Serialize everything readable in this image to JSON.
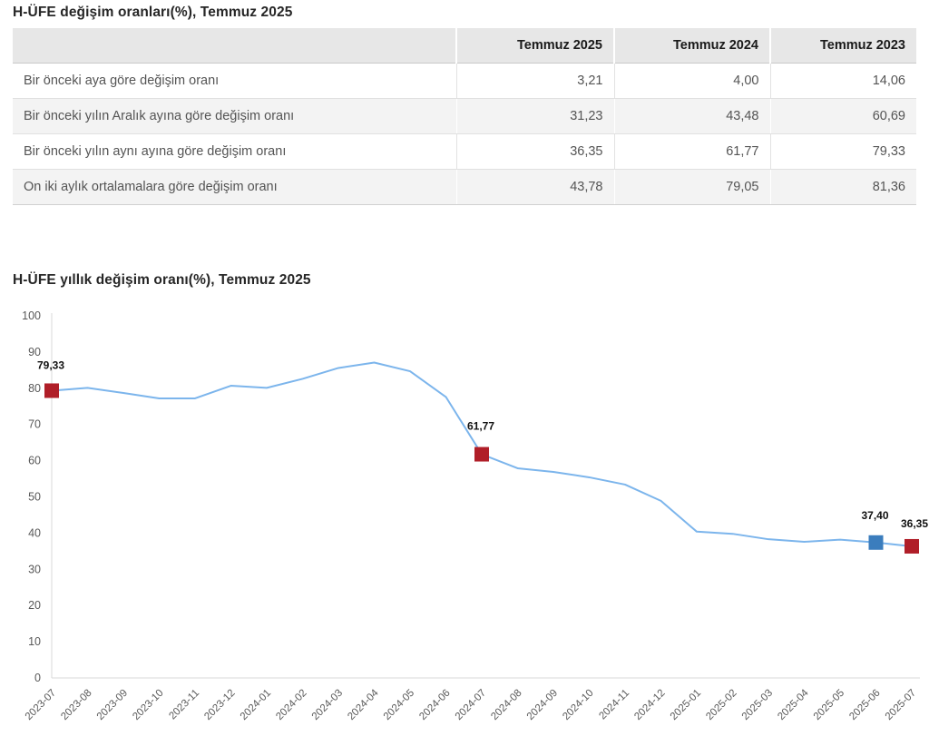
{
  "table": {
    "title": "H-ÜFE değişim oranları(%), Temmuz 2025",
    "columns": [
      "",
      "Temmuz 2025",
      "Temmuz 2024",
      "Temmuz 2023"
    ],
    "rows": [
      {
        "label": "Bir önceki aya göre değişim oranı",
        "values": [
          "3,21",
          "4,00",
          "14,06"
        ]
      },
      {
        "label": "Bir önceki yılın Aralık ayına göre değişim oranı",
        "values": [
          "31,23",
          "43,48",
          "60,69"
        ]
      },
      {
        "label": "Bir önceki yılın aynı ayına göre değişim oranı",
        "values": [
          "36,35",
          "61,77",
          "79,33"
        ]
      },
      {
        "label": "On iki aylık ortalamalara göre değişim oranı",
        "values": [
          "43,78",
          "79,05",
          "81,36"
        ]
      }
    ]
  },
  "chart": {
    "title": "H-ÜFE yıllık değişim oranı(%), Temmuz 2025"
  },
  "chart_data": [
    {
      "type": "table",
      "title": "H-ÜFE değişim oranları(%), Temmuz 2025",
      "columns": [
        "",
        "Temmuz 2025",
        "Temmuz 2024",
        "Temmuz 2023"
      ],
      "rows": [
        [
          "Bir önceki aya göre değişim oranı",
          3.21,
          4.0,
          14.06
        ],
        [
          "Bir önceki yılın Aralık ayına göre değişim oranı",
          31.23,
          43.48,
          60.69
        ],
        [
          "Bir önceki yılın aynı ayına göre değişim oranı",
          36.35,
          61.77,
          79.33
        ],
        [
          "On iki aylık ortalamalara göre değişim oranı",
          43.78,
          79.05,
          81.36
        ]
      ]
    },
    {
      "type": "line",
      "title": "H-ÜFE yıllık değişim oranı(%), Temmuz 2025",
      "x": [
        "2023-07",
        "2023-08",
        "2023-09",
        "2023-10",
        "2023-11",
        "2023-12",
        "2024-01",
        "2024-02",
        "2024-03",
        "2024-04",
        "2024-05",
        "2024-06",
        "2024-07",
        "2024-08",
        "2024-09",
        "2024-10",
        "2024-11",
        "2024-12",
        "2025-01",
        "2025-02",
        "2025-03",
        "2025-04",
        "2025-05",
        "2025-06",
        "2025-07"
      ],
      "series": [
        {
          "name": "H-ÜFE yıllık değişim oranı (%)",
          "values": [
            79.33,
            80.1,
            78.7,
            77.2,
            77.2,
            80.7,
            80.1,
            82.6,
            85.6,
            87.1,
            84.7,
            77.6,
            61.77,
            57.9,
            56.9,
            55.4,
            53.4,
            48.9,
            40.4,
            39.8,
            38.3,
            37.6,
            38.2,
            37.4,
            36.35
          ]
        }
      ],
      "markers": [
        {
          "x": "2023-07",
          "value": 79.33,
          "label": "79,33",
          "color": "red"
        },
        {
          "x": "2024-07",
          "value": 61.77,
          "label": "61,77",
          "color": "red"
        },
        {
          "x": "2025-06",
          "value": 37.4,
          "label": "37,40",
          "color": "blue"
        },
        {
          "x": "2025-07",
          "value": 36.35,
          "label": "36,35",
          "color": "red"
        }
      ],
      "xlabel": "",
      "ylabel": "",
      "ylim": [
        0,
        100
      ],
      "ytick_step": 10,
      "grid": false,
      "legend": false
    }
  ],
  "colors": {
    "line": "#7cb5ec",
    "marker_red": "#b01e28",
    "marker_blue": "#3b7dbd",
    "axis_line": "#d8d8d8",
    "tick_text": "#595959",
    "data_label": "#111111",
    "title_text": "#262626",
    "table_header_bg": "#e7e7e7",
    "table_row_alt_bg": "#f3f3f3",
    "table_text": "#545454"
  }
}
